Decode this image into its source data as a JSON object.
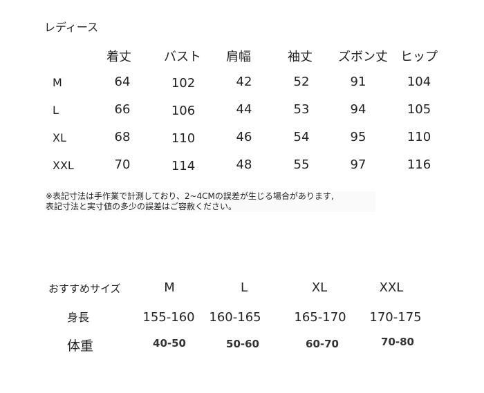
{
  "size_chart": {
    "title": "レディース",
    "headers": [
      "着丈",
      "バスト",
      "肩幅",
      "袖丈",
      "ズボン丈",
      "ヒップ"
    ],
    "rows": [
      {
        "size": "M",
        "values": [
          "64",
          "102",
          "42",
          "52",
          "91",
          "104"
        ]
      },
      {
        "size": "L",
        "values": [
          "66",
          "106",
          "44",
          "53",
          "94",
          "105"
        ]
      },
      {
        "size": "XL",
        "values": [
          "68",
          "110",
          "46",
          "54",
          "95",
          "110"
        ]
      },
      {
        "size": "XXL",
        "values": [
          "70",
          "114",
          "48",
          "55",
          "97",
          "116"
        ]
      }
    ],
    "note_line1": "※表記寸法は手作業で計測しており、2~4CMの誤差が生じる場合があります,",
    "note_line2": "表記寸法と実寸値の多少の誤差はご容赦ください。"
  },
  "recommend": {
    "label": "おすすめサイズ",
    "sizes": [
      "M",
      "L",
      "XL",
      "XXL"
    ],
    "height_label": "身長",
    "heights": [
      "155-160",
      "160-165",
      "165-170",
      "170-175"
    ],
    "weight_label": "体重",
    "weights": [
      "40-50",
      "50-60",
      "60-70",
      "70-80"
    ]
  }
}
